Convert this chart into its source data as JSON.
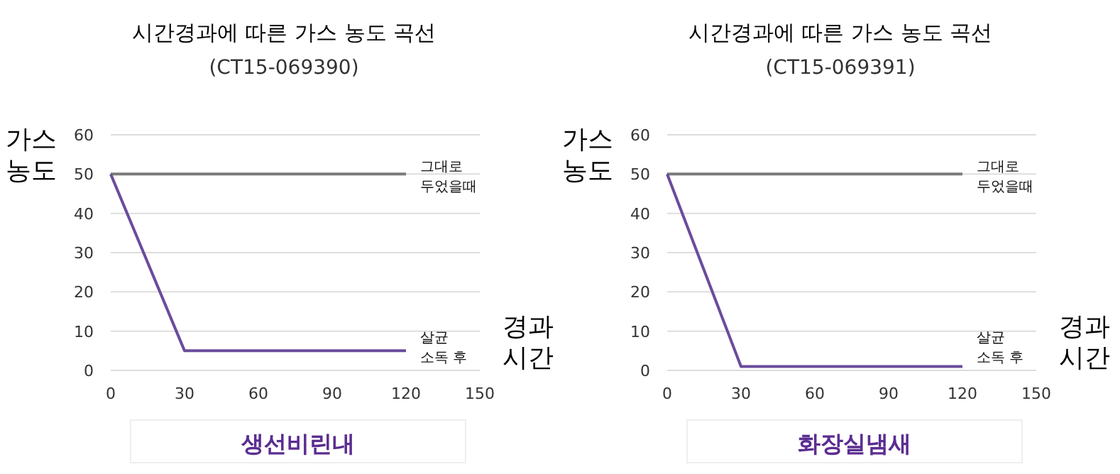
{
  "chart_data": [
    {
      "type": "line",
      "title": "시간경과에 따른 가스 농도 곡선",
      "subtitle": "(CT15-069390)",
      "xlabel": "경과 시간",
      "ylabel": "가스 농도",
      "xlim": [
        0,
        150
      ],
      "ylim": [
        0,
        60
      ],
      "xticks": [
        0,
        30,
        60,
        90,
        120,
        150
      ],
      "yticks": [
        0,
        10,
        20,
        30,
        40,
        50,
        60
      ],
      "grid": "y",
      "annotations": [
        "생선비린내"
      ],
      "series": [
        {
          "name": "그대로 두었을때",
          "color": "#7a7a7a",
          "x": [
            0,
            120
          ],
          "values": [
            50,
            50
          ]
        },
        {
          "name": "살균 소독 후",
          "color": "#6a4c9c",
          "x": [
            0,
            30,
            120
          ],
          "values": [
            50,
            5,
            5
          ]
        }
      ]
    },
    {
      "type": "line",
      "title": "시간경과에 따른 가스 농도 곡선",
      "subtitle": "(CT15-069391)",
      "xlabel": "경과 시간",
      "ylabel": "가스 농도",
      "xlim": [
        0,
        150
      ],
      "ylim": [
        0,
        60
      ],
      "xticks": [
        0,
        30,
        60,
        90,
        120,
        150
      ],
      "yticks": [
        0,
        10,
        20,
        30,
        40,
        50,
        60
      ],
      "grid": "y",
      "annotations": [
        "화장실냄새"
      ],
      "series": [
        {
          "name": "그대로 두었을때",
          "color": "#7a7a7a",
          "x": [
            0,
            120
          ],
          "values": [
            50,
            50
          ]
        },
        {
          "name": "살균 소독 후",
          "color": "#6a4c9c",
          "x": [
            0,
            30,
            120
          ],
          "values": [
            50,
            1,
            1
          ]
        }
      ]
    }
  ]
}
